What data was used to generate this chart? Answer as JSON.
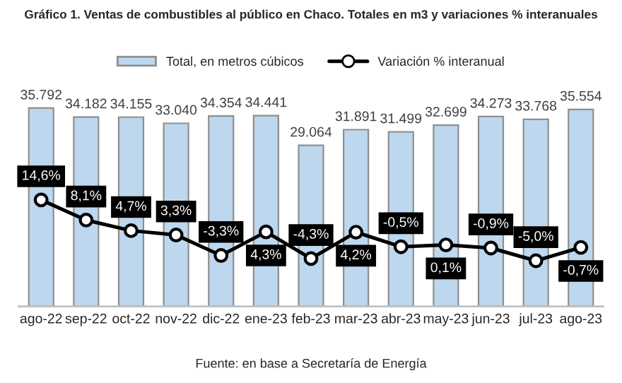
{
  "chart_data": {
    "type": "bar",
    "title": "Gráfico 1. Ventas de combustibles al público en Chaco. Totales en m3 y variaciones % interanuales",
    "categories": [
      "ago-22",
      "sep-22",
      "oct-22",
      "nov-22",
      "dic-22",
      "ene-23",
      "feb-23",
      "mar-23",
      "abr-23",
      "may-23",
      "jun-23",
      "jul-23",
      "ago-23"
    ],
    "series": [
      {
        "name": "Total, en metros cúbicos",
        "color": "#bdd7ee",
        "values": [
          35792,
          34182,
          34155,
          33040,
          34354,
          34441,
          29064,
          31891,
          31499,
          32699,
          34273,
          33768,
          35554
        ],
        "value_labels": [
          "35.792",
          "34.182",
          "34.155",
          "33.040",
          "34.354",
          "34.441",
          "29.064",
          "31.891",
          "31.499",
          "32.699",
          "34.273",
          "33.768",
          "35.554"
        ]
      },
      {
        "name": "Variación % interanual",
        "type": "line",
        "axis": "y2",
        "color": "#000000",
        "marker": "circle",
        "values": [
          14.6,
          8.1,
          4.7,
          3.3,
          -3.3,
          4.3,
          -4.3,
          4.2,
          -0.5,
          0.1,
          -0.9,
          -5.0,
          -0.7
        ],
        "value_labels": [
          "14,6%",
          "8,1%",
          "4,7%",
          "3,3%",
          "-3,3%",
          "4,3%",
          "-4,3%",
          "4,2%",
          "-0,5%",
          "0,1%",
          "-0,9%",
          "-5,0%",
          "-0,7%"
        ]
      }
    ],
    "annotations": [
      "Fuente: en base a Secretaría de Energía"
    ],
    "legend": "top",
    "grid": false,
    "tick_labels": "x"
  }
}
